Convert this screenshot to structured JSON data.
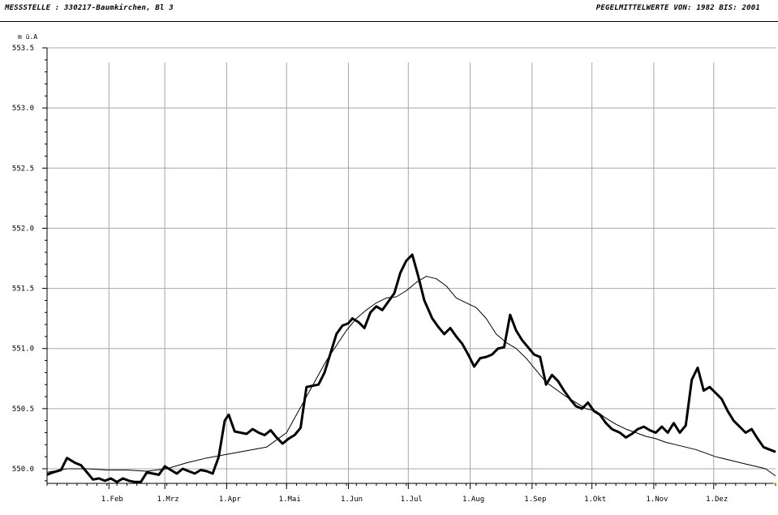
{
  "header": {
    "left": "MESSSTELLE : 330217-Baumkirchen, Bl  3",
    "right": "PEGELMITTELWERTE VON: 1982 BIS: 2001"
  },
  "chart_data": {
    "type": "line",
    "title": "",
    "xlabel": "",
    "ylabel": "m ü.A",
    "ylim": [
      549.9,
      553.5
    ],
    "xlim": [
      0,
      365
    ],
    "grid": true,
    "y_ticks": [
      550.0,
      550.5,
      551.0,
      551.5,
      552.0,
      552.5,
      553.0,
      553.5
    ],
    "y_tick_labels": [
      "550.0",
      "550.5",
      "551.0",
      "551.5",
      "552.0",
      "552.5",
      "553.0",
      "553.5"
    ],
    "x_ticks": [
      31,
      59,
      90,
      120,
      151,
      181,
      212,
      243,
      273,
      304,
      334
    ],
    "x_tick_labels": [
      "1.Feb",
      "1.Mrz",
      "1.Apr",
      "1.Mai",
      "1.Jun",
      "1.Jul",
      "1.Aug",
      "1.Sep",
      "1.Okt",
      "1.Nov",
      "1.Dez"
    ],
    "series": [
      {
        "style": "thick",
        "x": [
          0,
          3,
          7,
          10,
          14,
          17,
          20,
          23,
          26,
          29,
          32,
          35,
          38,
          41,
          44,
          47,
          50,
          53,
          56,
          59,
          62,
          65,
          68,
          71,
          74,
          77,
          80,
          83,
          86,
          89,
          91,
          94,
          97,
          100,
          103,
          106,
          109,
          112,
          115,
          118,
          121,
          124,
          127,
          130,
          133,
          136,
          139,
          142,
          145,
          148,
          151,
          153,
          156,
          159,
          162,
          165,
          168,
          171,
          174,
          177,
          180,
          183,
          186,
          189,
          193,
          196,
          199,
          202,
          205,
          208,
          211,
          214,
          217,
          220,
          223,
          226,
          229,
          232,
          235,
          238,
          241,
          244,
          247,
          250,
          253,
          256,
          259,
          262,
          265,
          268,
          271,
          274,
          277,
          280,
          283,
          287,
          290,
          293,
          296,
          299,
          302,
          305,
          308,
          311,
          314,
          317,
          320,
          323,
          326,
          329,
          332,
          335,
          338,
          341,
          344,
          347,
          350,
          353,
          356,
          359,
          362,
          365
        ],
        "y": [
          549.95,
          549.97,
          549.99,
          550.09,
          550.05,
          550.03,
          549.97,
          549.91,
          549.92,
          549.9,
          549.92,
          549.89,
          549.92,
          549.9,
          549.89,
          549.89,
          549.97,
          549.96,
          549.95,
          550.02,
          549.99,
          549.96,
          550.0,
          549.98,
          549.96,
          549.99,
          549.98,
          549.96,
          550.1,
          550.4,
          550.45,
          550.31,
          550.3,
          550.29,
          550.33,
          550.3,
          550.28,
          550.32,
          550.26,
          550.21,
          550.25,
          550.28,
          550.34,
          550.68,
          550.69,
          550.7,
          550.8,
          550.96,
          551.12,
          551.19,
          551.21,
          551.25,
          551.22,
          551.17,
          551.3,
          551.35,
          551.32,
          551.39,
          551.46,
          551.63,
          551.73,
          551.78,
          551.6,
          551.4,
          551.25,
          551.18,
          551.12,
          551.17,
          551.1,
          551.04,
          550.95,
          550.85,
          550.92,
          550.93,
          550.95,
          551.0,
          551.01,
          551.28,
          551.15,
          551.07,
          551.01,
          550.95,
          550.93,
          550.7,
          550.78,
          550.73,
          550.65,
          550.58,
          550.52,
          550.5,
          550.55,
          550.48,
          550.45,
          550.38,
          550.33,
          550.3,
          550.26,
          550.29,
          550.33,
          550.35,
          550.32,
          550.3,
          550.35,
          550.3,
          550.38,
          550.3,
          550.36,
          550.74,
          550.84,
          550.65,
          550.68,
          550.63,
          550.58,
          550.48,
          550.4,
          550.35,
          550.3,
          550.33,
          550.25,
          550.18,
          550.16,
          550.14
        ]
      },
      {
        "style": "thin",
        "x": [
          0,
          10,
          20,
          30,
          40,
          50,
          60,
          70,
          80,
          90,
          100,
          110,
          120,
          130,
          140,
          150,
          155,
          160,
          165,
          170,
          175,
          180,
          185,
          190,
          195,
          200,
          205,
          210,
          215,
          220,
          225,
          230,
          235,
          240,
          245,
          250,
          255,
          260,
          265,
          270,
          275,
          280,
          285,
          290,
          295,
          300,
          305,
          310,
          315,
          320,
          325,
          330,
          335,
          340,
          345,
          350,
          355,
          360,
          365
        ],
        "y": [
          549.97,
          550.0,
          550.0,
          549.99,
          549.99,
          549.98,
          550.0,
          550.05,
          550.09,
          550.12,
          550.15,
          550.18,
          550.3,
          550.6,
          550.9,
          551.15,
          551.25,
          551.32,
          551.38,
          551.42,
          551.43,
          551.48,
          551.55,
          551.6,
          551.58,
          551.52,
          551.42,
          551.38,
          551.34,
          551.25,
          551.12,
          551.05,
          551.0,
          550.92,
          550.82,
          550.72,
          550.66,
          550.6,
          550.55,
          550.5,
          550.48,
          550.42,
          550.37,
          550.33,
          550.3,
          550.27,
          550.25,
          550.22,
          550.2,
          550.18,
          550.16,
          550.13,
          550.1,
          550.08,
          550.06,
          550.04,
          550.02,
          550.0,
          549.94
        ]
      }
    ]
  }
}
